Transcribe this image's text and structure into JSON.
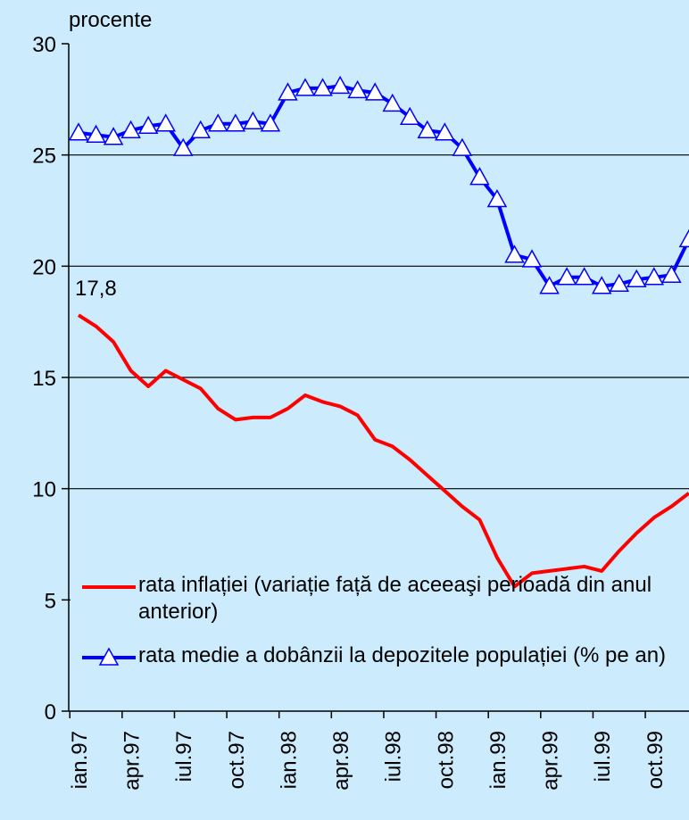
{
  "chart_data": {
    "type": "line",
    "y_label": "procente",
    "categories": [
      "ian.97",
      null,
      null,
      "apr.97",
      null,
      null,
      "iul.97",
      null,
      null,
      "oct.97",
      null,
      null,
      "ian.98",
      null,
      null,
      "apr.98",
      null,
      null,
      "iul.98",
      null,
      null,
      "oct.98",
      null,
      null,
      "ian.99",
      null,
      null,
      "apr.99",
      null,
      null,
      "iul.99",
      null,
      null,
      "oct.99",
      null,
      null
    ],
    "series": [
      {
        "name": "rata inflației (variație față de aceeaşi perioadă din anul anterior)",
        "color": "#ff0000",
        "values": [
          17.8,
          17.3,
          16.6,
          15.3,
          14.6,
          15.3,
          14.9,
          14.5,
          13.6,
          13.1,
          13.2,
          13.2,
          13.6,
          14.2,
          13.9,
          13.7,
          13.3,
          12.2,
          11.9,
          11.3,
          10.6,
          9.9,
          9.2,
          8.6,
          6.9,
          5.6,
          6.2,
          6.3,
          6.4,
          6.5,
          6.3,
          7.2,
          8.0,
          8.7,
          9.2,
          9.8
        ],
        "value_labels": [
          "17,8",
          null,
          null,
          null,
          null,
          null,
          null,
          null,
          null,
          null,
          null,
          null,
          null,
          null,
          null,
          null,
          null,
          null,
          null,
          null,
          null,
          null,
          null,
          null,
          null,
          null,
          null,
          null,
          null,
          null,
          null,
          null,
          null,
          null,
          null,
          null
        ]
      },
      {
        "name": "rata medie a dobânzii la depozitele populației (% pe an)",
        "color": "#0000ff",
        "marker": "triangle",
        "values": [
          26.0,
          25.9,
          25.8,
          26.1,
          26.3,
          26.4,
          25.3,
          26.1,
          26.4,
          26.4,
          26.5,
          26.4,
          27.8,
          28.0,
          28.0,
          28.1,
          27.9,
          27.8,
          27.3,
          26.7,
          26.1,
          26.0,
          25.3,
          24.0,
          23.0,
          20.5,
          20.3,
          19.1,
          19.5,
          19.5,
          19.1,
          19.2,
          19.4,
          19.5,
          19.6,
          21.2
        ]
      }
    ],
    "ylim": [
      0,
      30
    ],
    "yticks": [
      0,
      5,
      10,
      15,
      20,
      25,
      30
    ],
    "grid": true,
    "legend": "lower left"
  }
}
